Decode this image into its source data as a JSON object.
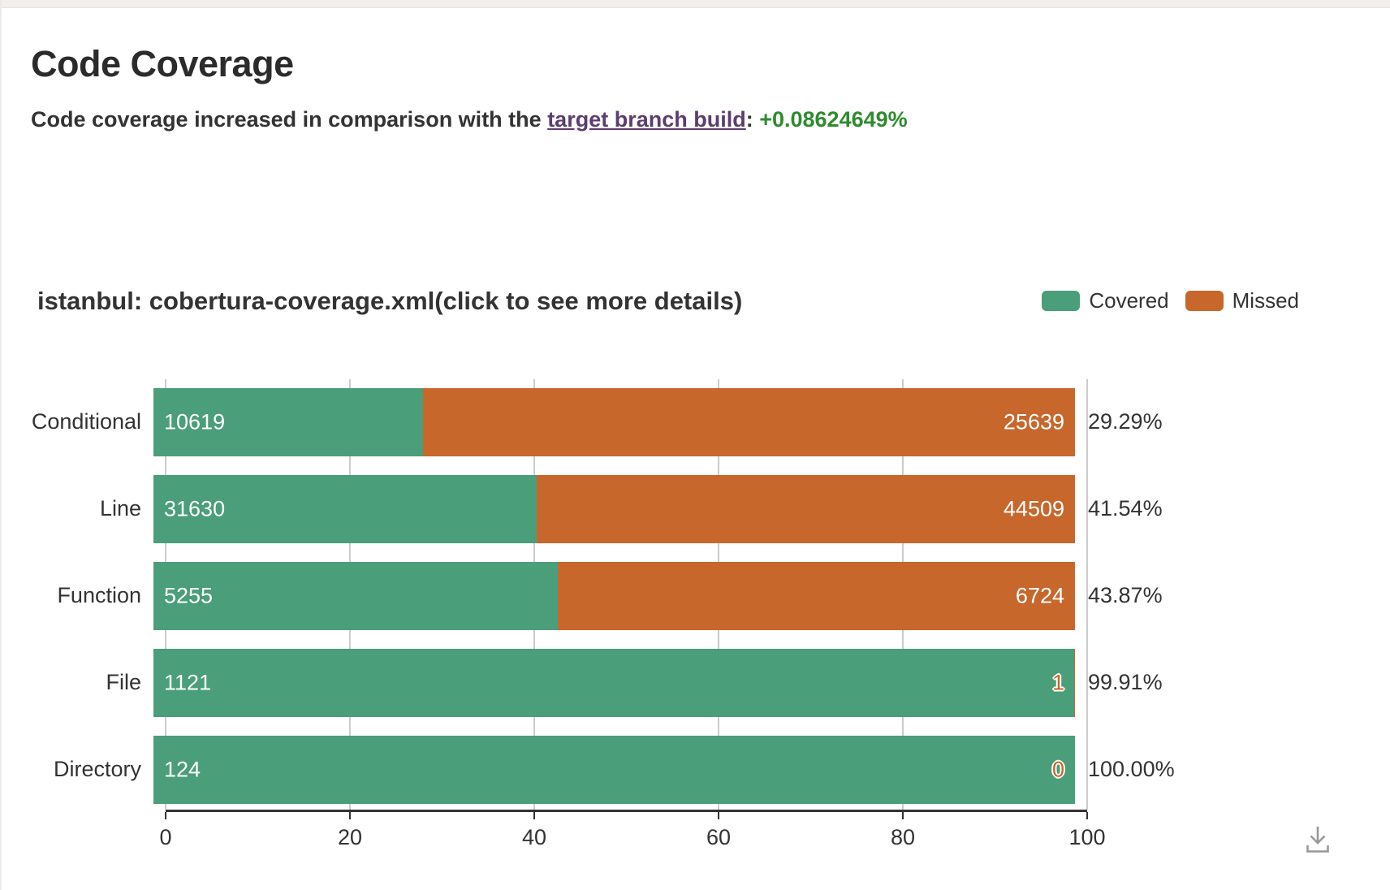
{
  "page": {
    "title": "Code Coverage",
    "subtitle_prefix": "Code coverage increased in comparison with the ",
    "subtitle_link": "target branch build",
    "subtitle_colon": ": ",
    "subtitle_delta": "+0.08624649%"
  },
  "legend": {
    "covered": "Covered",
    "missed": "Missed"
  },
  "colors": {
    "covered": "#4a9e7a",
    "missed": "#c7672b",
    "delta": "#2e8b2e",
    "link": "#5c3d6e"
  },
  "icons": {
    "download": "download-arrow-into-tray"
  },
  "chart_data": {
    "type": "bar",
    "orientation": "horizontal",
    "stacked": true,
    "title": "istanbul: cobertura-coverage.xml(click to see more details)",
    "legend_position": "top-right",
    "grid": true,
    "xlim": [
      0,
      100
    ],
    "xticks": [
      "0",
      "20",
      "40",
      "60",
      "80",
      "100"
    ],
    "categories": [
      "Conditional",
      "Line",
      "Function",
      "File",
      "Directory"
    ],
    "series": [
      {
        "name": "Covered",
        "values": [
          10619,
          31630,
          5255,
          1121,
          124
        ]
      },
      {
        "name": "Missed",
        "values": [
          25639,
          44509,
          6724,
          1,
          0
        ]
      }
    ],
    "percentages": [
      "29.29%",
      "41.54%",
      "43.87%",
      "99.91%",
      "100.00%"
    ]
  }
}
